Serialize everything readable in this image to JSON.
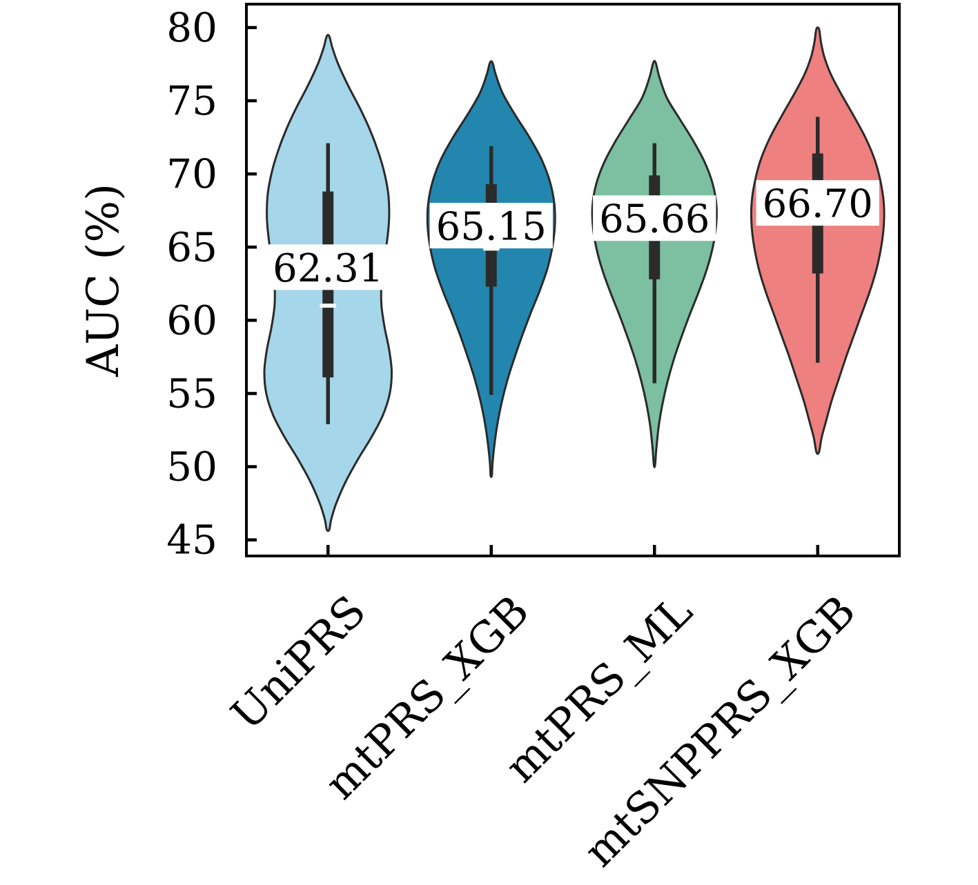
{
  "figure": {
    "background": "#ffffff"
  },
  "y_axis": {
    "label": "AUC (%)",
    "ticks": [
      80,
      75,
      70,
      65,
      60,
      55,
      50,
      45
    ],
    "range_displayed": [
      43.9,
      81.6
    ]
  },
  "x_axis": {
    "tick_labels": [
      "UniPRS",
      "mtPRS_XGB",
      "mtPRS_ML",
      "mtSNPPRS_XGB"
    ],
    "label_rotation_deg": 45
  },
  "style": {
    "violin_stroke": "#2a2a2a",
    "box_color": "#2b2b2b",
    "median_color": "#f5f5f5",
    "mean_label_bg": "#ffffff",
    "axis_color": "#000000",
    "text_color": "#000000"
  },
  "chart_data": {
    "type": "violin",
    "title": "",
    "xlabel": "",
    "ylabel": "AUC (%)",
    "ylim": [
      43.9,
      81.6
    ],
    "grid": false,
    "legend": "none",
    "categories": [
      "UniPRS",
      "mtPRS_XGB",
      "mtPRS_ML",
      "mtSNPPRS_XGB"
    ],
    "series": [
      {
        "label": "UniPRS",
        "fill": "#a5d6e9",
        "mean": 62.31,
        "mean_label": "62.31",
        "median": 61.0,
        "q1": 56.1,
        "q3": 68.8,
        "whisker_low": 52.9,
        "whisker_high": 72.1,
        "range": [
          45.7,
          79.4
        ],
        "width_scale": 0.78,
        "kde": [
          [
            79.4,
            0.02
          ],
          [
            78.6,
            0.07
          ],
          [
            77.5,
            0.16
          ],
          [
            76.0,
            0.32
          ],
          [
            74.5,
            0.5
          ],
          [
            73.0,
            0.66
          ],
          [
            71.5,
            0.79
          ],
          [
            70.0,
            0.89
          ],
          [
            68.5,
            0.95
          ],
          [
            67.0,
            0.96
          ],
          [
            65.5,
            0.93
          ],
          [
            64.0,
            0.88
          ],
          [
            62.5,
            0.84
          ],
          [
            61.0,
            0.84
          ],
          [
            59.5,
            0.89
          ],
          [
            58.0,
            0.96
          ],
          [
            56.5,
            1.0
          ],
          [
            55.0,
            0.97
          ],
          [
            53.5,
            0.86
          ],
          [
            52.0,
            0.68
          ],
          [
            50.5,
            0.47
          ],
          [
            49.0,
            0.28
          ],
          [
            47.5,
            0.13
          ],
          [
            46.4,
            0.05
          ],
          [
            45.7,
            0.02
          ]
        ]
      },
      {
        "label": "mtPRS_XGB",
        "fill": "#2286af",
        "mean": 65.15,
        "mean_label": "65.15",
        "median": 64.9,
        "q1": 62.3,
        "q3": 69.3,
        "whisker_low": 54.9,
        "whisker_high": 71.9,
        "range": [
          49.4,
          77.6
        ],
        "width_scale": 0.78,
        "kde": [
          [
            77.6,
            0.02
          ],
          [
            76.8,
            0.07
          ],
          [
            75.5,
            0.18
          ],
          [
            74.0,
            0.38
          ],
          [
            72.5,
            0.6
          ],
          [
            71.0,
            0.79
          ],
          [
            69.5,
            0.92
          ],
          [
            68.0,
            0.99
          ],
          [
            66.5,
            1.0
          ],
          [
            65.0,
            0.96
          ],
          [
            63.5,
            0.88
          ],
          [
            62.0,
            0.76
          ],
          [
            60.5,
            0.62
          ],
          [
            59.0,
            0.49
          ],
          [
            57.5,
            0.37
          ],
          [
            56.0,
            0.26
          ],
          [
            54.5,
            0.17
          ],
          [
            53.0,
            0.1
          ],
          [
            51.5,
            0.05
          ],
          [
            50.2,
            0.02
          ],
          [
            49.4,
            0.01
          ]
        ]
      },
      {
        "label": "mtPRS_ML",
        "fill": "#7cbfa1",
        "mean": 65.66,
        "mean_label": "65.66",
        "median": null,
        "q1": 62.8,
        "q3": 69.9,
        "whisker_low": 55.7,
        "whisker_high": 72.1,
        "range": [
          50.1,
          77.6
        ],
        "width_scale": 0.76,
        "kde": [
          [
            77.6,
            0.02
          ],
          [
            76.6,
            0.08
          ],
          [
            75.2,
            0.2
          ],
          [
            73.8,
            0.4
          ],
          [
            72.3,
            0.62
          ],
          [
            70.8,
            0.81
          ],
          [
            69.3,
            0.94
          ],
          [
            67.8,
            1.0
          ],
          [
            66.3,
            0.99
          ],
          [
            64.8,
            0.93
          ],
          [
            63.3,
            0.83
          ],
          [
            61.8,
            0.7
          ],
          [
            60.3,
            0.56
          ],
          [
            58.8,
            0.43
          ],
          [
            57.3,
            0.31
          ],
          [
            55.8,
            0.21
          ],
          [
            54.3,
            0.13
          ],
          [
            52.8,
            0.07
          ],
          [
            51.2,
            0.03
          ],
          [
            50.1,
            0.01
          ]
        ]
      },
      {
        "label": "mtSNPPRS_XGB",
        "fill": "#ee8080",
        "mean": 66.7,
        "mean_label": "66.70",
        "median": null,
        "q1": 63.2,
        "q3": 71.4,
        "whisker_low": 57.1,
        "whisker_high": 73.9,
        "range": [
          51.0,
          79.9
        ],
        "width_scale": 0.81,
        "kde": [
          [
            79.9,
            0.02
          ],
          [
            79.0,
            0.05
          ],
          [
            78.0,
            0.1
          ],
          [
            76.8,
            0.2
          ],
          [
            75.5,
            0.35
          ],
          [
            74.0,
            0.54
          ],
          [
            72.5,
            0.72
          ],
          [
            71.0,
            0.86
          ],
          [
            69.5,
            0.95
          ],
          [
            68.0,
            1.0
          ],
          [
            66.5,
            1.0
          ],
          [
            65.0,
            0.96
          ],
          [
            63.5,
            0.89
          ],
          [
            62.0,
            0.79
          ],
          [
            60.5,
            0.67
          ],
          [
            59.0,
            0.55
          ],
          [
            57.5,
            0.43
          ],
          [
            56.0,
            0.32
          ],
          [
            54.5,
            0.21
          ],
          [
            53.0,
            0.12
          ],
          [
            52.0,
            0.06
          ],
          [
            51.0,
            0.02
          ]
        ]
      }
    ]
  }
}
